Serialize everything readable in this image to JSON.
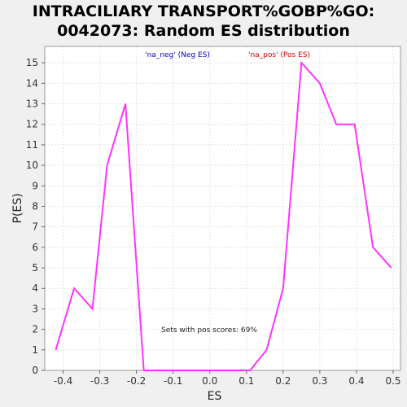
{
  "chart_data": {
    "type": "line",
    "title_lines": [
      "INTRACILIARY TRANSPORT%GOBP%GO:",
      "0042073: Random ES distribution"
    ],
    "xlabel": "ES",
    "ylabel": "P(ES)",
    "xlim": [
      -0.45,
      0.52
    ],
    "ylim": [
      0,
      15.8
    ],
    "x_ticks": [
      -0.4,
      -0.3,
      -0.2,
      -0.1,
      0.0,
      0.1,
      0.2,
      0.3,
      0.4,
      0.5
    ],
    "x_tick_labels": [
      "-0.4",
      "-0.3",
      "-0.2",
      "-0.1",
      "0.0",
      "0.1",
      "0.2",
      "0.3",
      "0.4",
      "0.5"
    ],
    "y_ticks": [
      0,
      1,
      2,
      3,
      4,
      5,
      6,
      7,
      8,
      9,
      10,
      11,
      12,
      13,
      14,
      15
    ],
    "y_tick_labels": [
      "0",
      "1",
      "2",
      "3",
      "4",
      "5",
      "6",
      "7",
      "8",
      "9",
      "10",
      "11",
      "12",
      "13",
      "14",
      "15"
    ],
    "grid": true,
    "legend": [
      {
        "label": "'na_neg' (Neg ES)",
        "color": "#0000cc"
      },
      {
        "label": "'na_pos' (Pos ES)",
        "color": "#cc0000"
      }
    ],
    "annotation": "Sets with pos scores: 69%",
    "series": [
      {
        "color": "#ff33ff",
        "x": [
          -0.42,
          -0.37,
          -0.32,
          -0.28,
          -0.23,
          -0.18,
          0.11,
          0.155,
          0.2,
          0.25,
          0.3,
          0.345,
          0.395,
          0.445,
          0.495
        ],
        "y": [
          1,
          4,
          3,
          10,
          13,
          0,
          0,
          1,
          4,
          15,
          14,
          12,
          12,
          6,
          5
        ]
      }
    ]
  }
}
